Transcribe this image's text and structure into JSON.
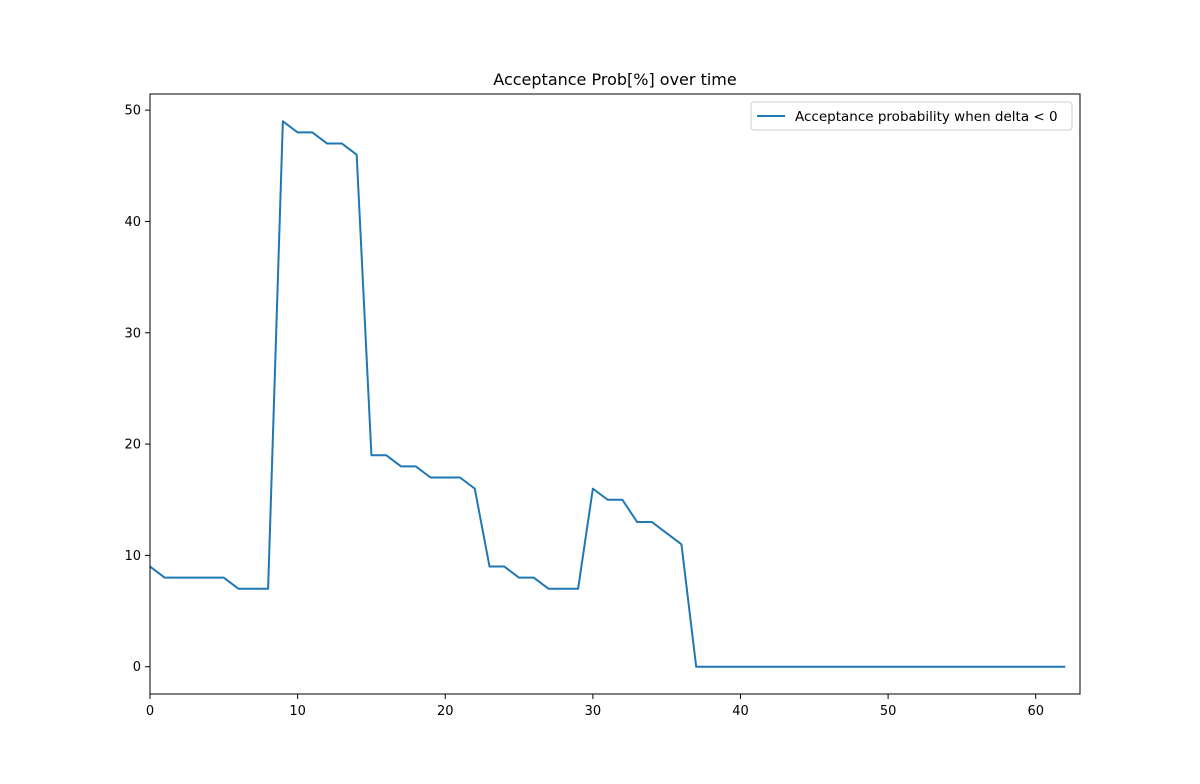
{
  "chart_data": {
    "type": "line",
    "title": "Acceptance Prob[%] over time",
    "xlabel": "",
    "ylabel": "",
    "xlim": [
      0,
      63
    ],
    "ylim": [
      -2.45,
      51.45
    ],
    "xticks": [
      0,
      10,
      20,
      30,
      40,
      50,
      60
    ],
    "yticks": [
      0,
      10,
      20,
      30,
      40,
      50
    ],
    "grid": false,
    "legend_position": "top-right",
    "series": [
      {
        "name": "Acceptance probability when delta < 0",
        "color": "#1f77b4",
        "x": [
          0,
          1,
          2,
          3,
          4,
          5,
          6,
          7,
          8,
          9,
          10,
          11,
          12,
          13,
          14,
          15,
          16,
          17,
          18,
          19,
          20,
          21,
          22,
          23,
          24,
          25,
          26,
          27,
          28,
          29,
          30,
          31,
          32,
          33,
          34,
          35,
          36,
          37,
          38,
          39,
          40,
          41,
          42,
          43,
          44,
          45,
          46,
          47,
          48,
          49,
          50,
          51,
          52,
          53,
          54,
          55,
          56,
          57,
          58,
          59,
          60,
          61,
          62
        ],
        "y": [
          9,
          8,
          8,
          8,
          8,
          8,
          7,
          7,
          7,
          49,
          48,
          48,
          47,
          47,
          46,
          19,
          19,
          18,
          18,
          17,
          17,
          17,
          16,
          9,
          9,
          8,
          8,
          7,
          7,
          7,
          16,
          15,
          15,
          13,
          13,
          12,
          11,
          0,
          0,
          0,
          0,
          0,
          0,
          0,
          0,
          0,
          0,
          0,
          0,
          0,
          0,
          0,
          0,
          0,
          0,
          0,
          0,
          0,
          0,
          0,
          0,
          0,
          0
        ]
      }
    ]
  }
}
